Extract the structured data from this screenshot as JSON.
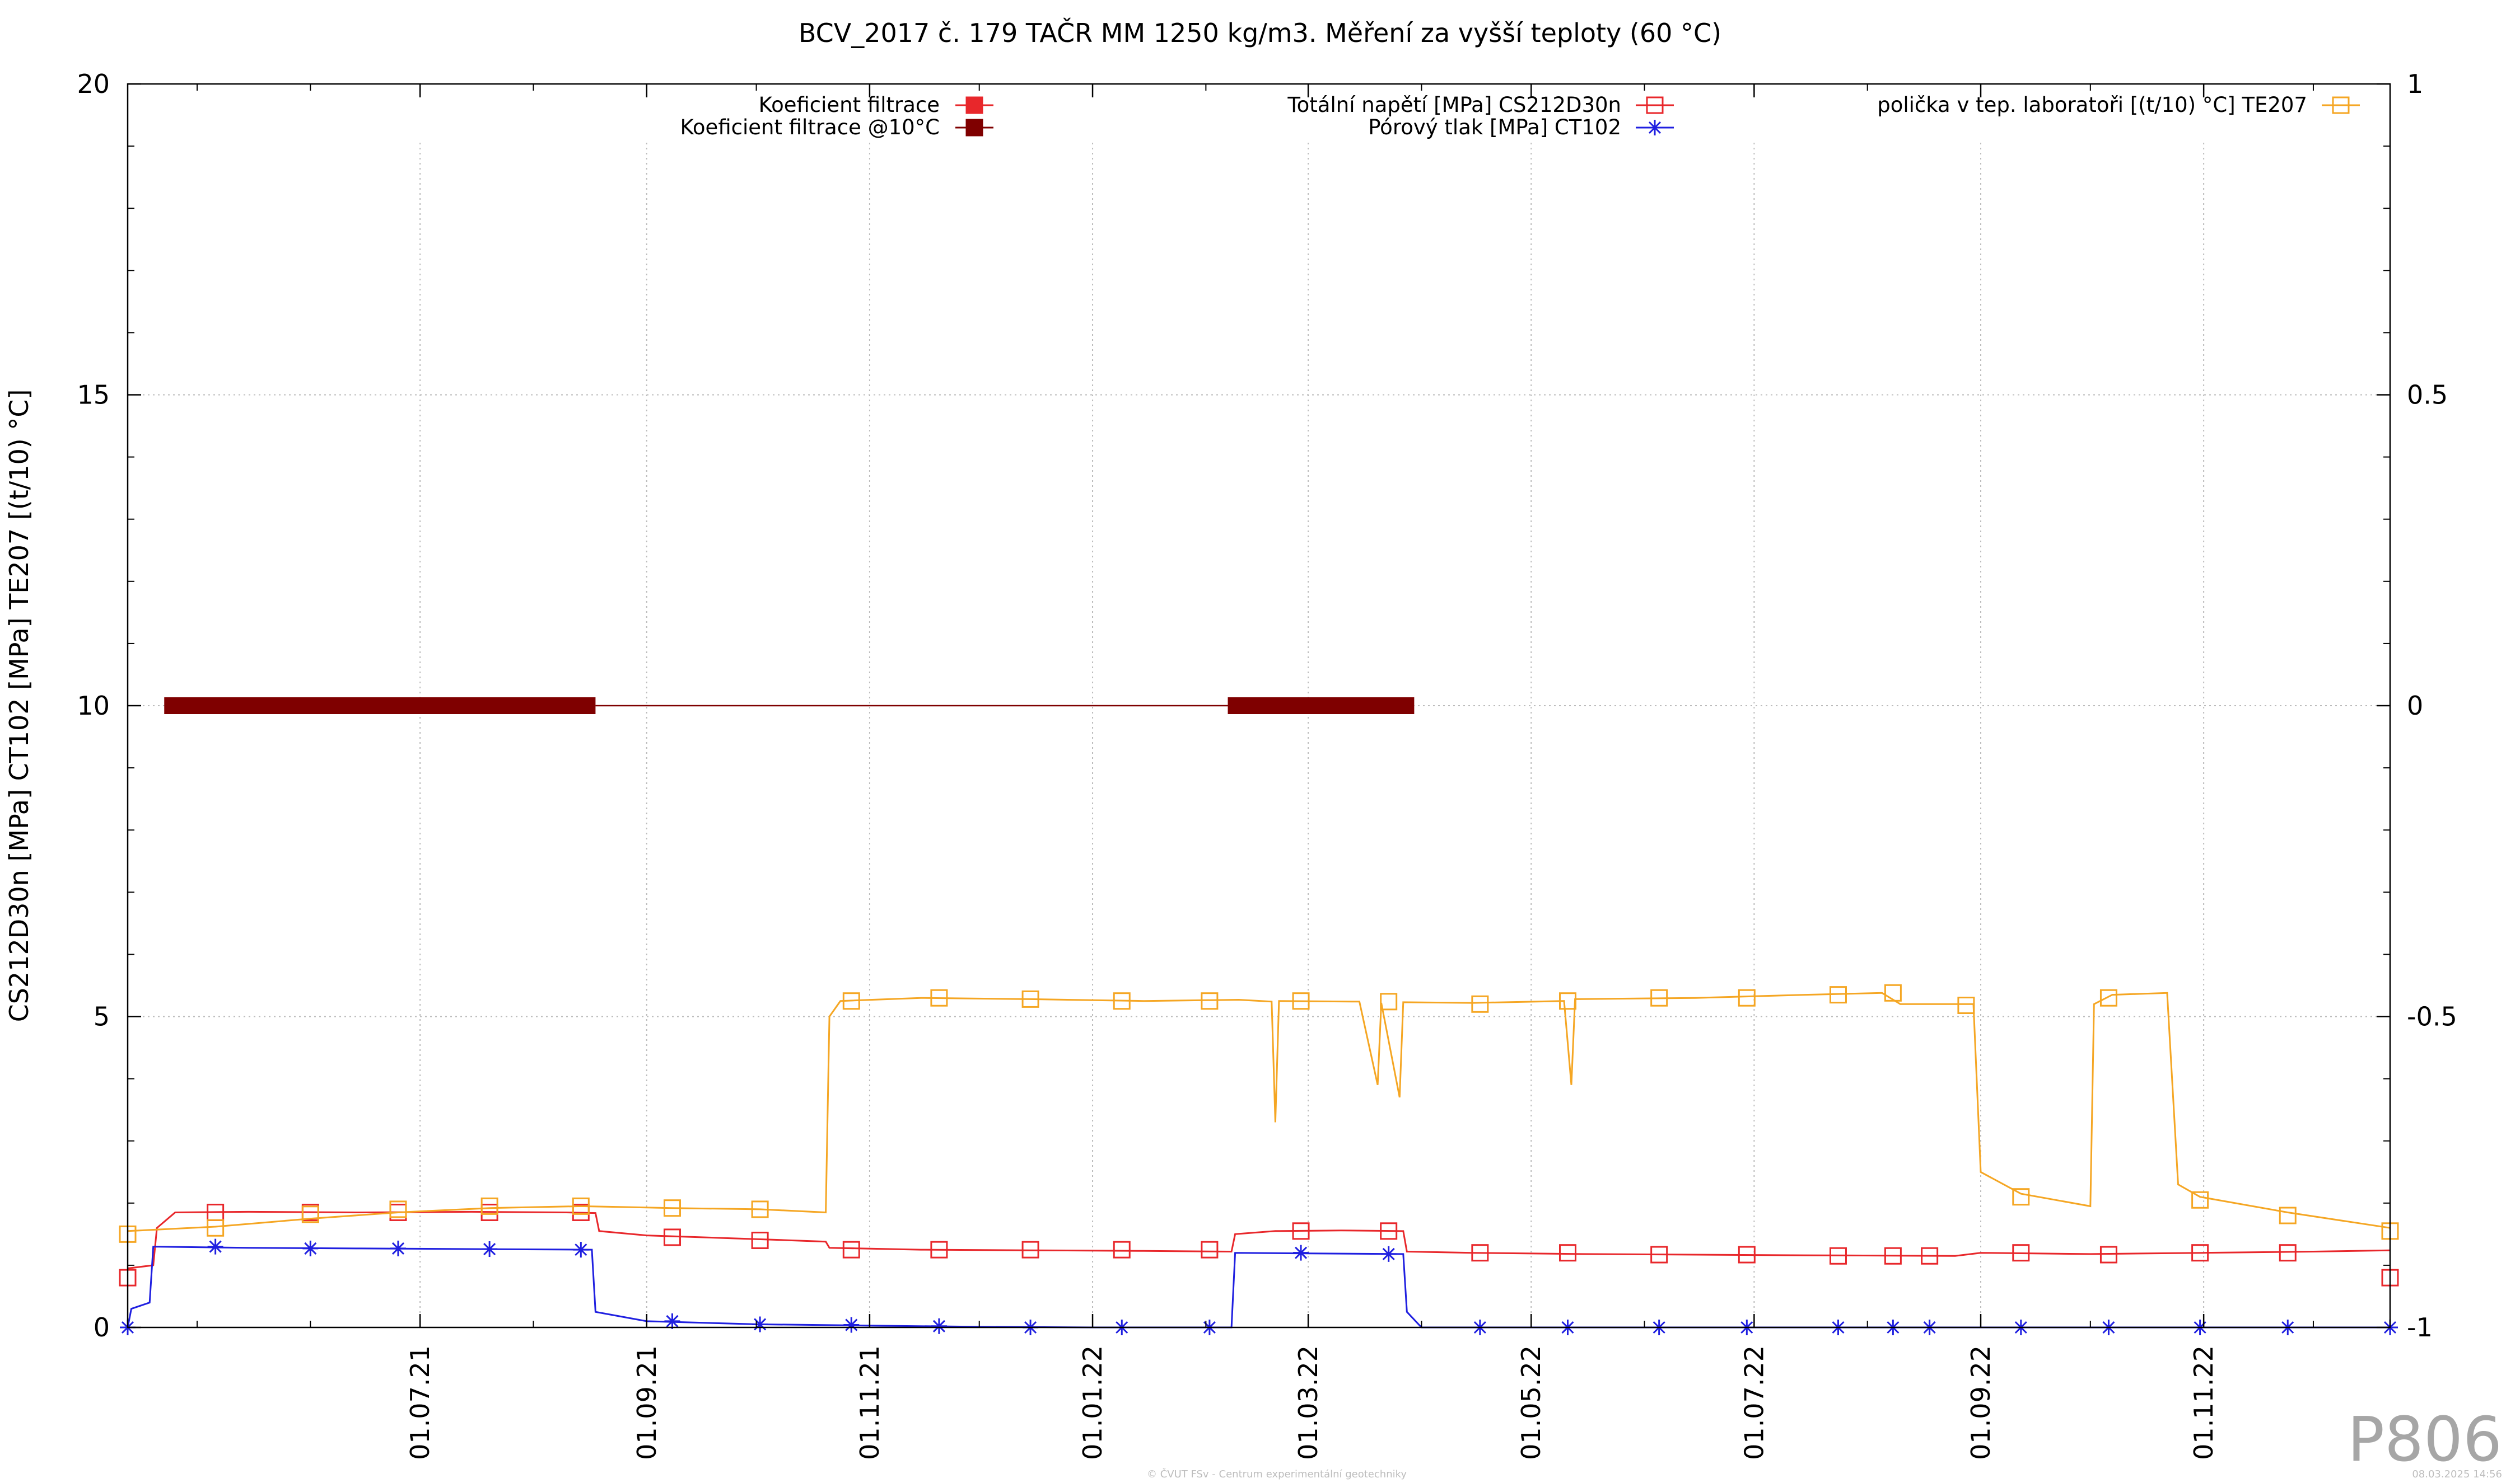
{
  "chart_data": {
    "type": "line",
    "title": "BCV_2017 č. 179 TAČR MM 1250 kg/m3. Měření za vyšší teploty (60 °C)",
    "ylabel": "CS212D30n [MPa] CT102 [MPa] TE207 [(t/10) °C]",
    "xlabel": "",
    "x_range": [
      "2021-04-12",
      "2022-12-22"
    ],
    "ylim": [
      0,
      20
    ],
    "y2lim": [
      -1,
      1
    ],
    "y_ticks": [
      "0",
      "5",
      "10",
      "15",
      "20"
    ],
    "y2_ticks": [
      "-1",
      "-0.5",
      "0",
      "0.5",
      "1"
    ],
    "x_ticks": [
      {
        "date": "2021-07-01",
        "label": "01.07.21"
      },
      {
        "date": "2021-09-01",
        "label": "01.09.21"
      },
      {
        "date": "2021-11-01",
        "label": "01.11.21"
      },
      {
        "date": "2022-01-01",
        "label": "01.01.22"
      },
      {
        "date": "2022-03-01",
        "label": "01.03.22"
      },
      {
        "date": "2022-05-01",
        "label": "01.05.22"
      },
      {
        "date": "2022-07-01",
        "label": "01.07.22"
      },
      {
        "date": "2022-09-01",
        "label": "01.09.22"
      },
      {
        "date": "2022-11-01",
        "label": "01.11.22"
      }
    ],
    "grid": true,
    "legend": [
      {
        "label": "Koeficient filtrace",
        "color": "#e8272b",
        "marker": "filled-square"
      },
      {
        "label": "Koeficient filtrace @10°C",
        "color": "#7f0000",
        "marker": "filled-square"
      },
      {
        "label": "Totální napětí [MPa] CS212D30n",
        "color": "#e8272b",
        "marker": "open-square"
      },
      {
        "label": "Pórový tlak [MPa] CT102",
        "color": "#1f1fe0",
        "marker": "star"
      },
      {
        "label": "polička v tep. laboratoři [(t/10) °C] TE207",
        "color": "#f5a623",
        "marker": "open-square"
      }
    ],
    "series": [
      {
        "name": "Totální napětí [MPa] CS212D30n",
        "color": "#e8272b",
        "axis": "y",
        "points": [
          [
            "2021-04-12",
            0.95
          ],
          [
            "2021-04-19",
            1.0
          ],
          [
            "2021-04-20",
            1.6
          ],
          [
            "2021-04-25",
            1.85
          ],
          [
            "2021-05-15",
            1.86
          ],
          [
            "2021-06-15",
            1.85
          ],
          [
            "2021-07-15",
            1.86
          ],
          [
            "2021-08-10",
            1.85
          ],
          [
            "2021-08-18",
            1.84
          ],
          [
            "2021-08-19",
            1.55
          ],
          [
            "2021-09-01",
            1.48
          ],
          [
            "2021-10-01",
            1.42
          ],
          [
            "2021-10-20",
            1.38
          ],
          [
            "2021-10-21",
            1.28
          ],
          [
            "2021-11-15",
            1.25
          ],
          [
            "2021-12-15",
            1.24
          ],
          [
            "2022-01-15",
            1.23
          ],
          [
            "2022-02-08",
            1.22
          ],
          [
            "2022-02-09",
            1.5
          ],
          [
            "2022-02-20",
            1.55
          ],
          [
            "2022-03-10",
            1.56
          ],
          [
            "2022-03-27",
            1.55
          ],
          [
            "2022-03-28",
            1.22
          ],
          [
            "2022-04-15",
            1.2
          ],
          [
            "2022-05-15",
            1.18
          ],
          [
            "2022-06-15",
            1.17
          ],
          [
            "2022-07-15",
            1.16
          ],
          [
            "2022-08-25",
            1.15
          ],
          [
            "2022-09-01",
            1.2
          ],
          [
            "2022-10-01",
            1.18
          ],
          [
            "2022-11-01",
            1.2
          ],
          [
            "2022-12-01",
            1.22
          ],
          [
            "2022-12-22",
            1.24
          ]
        ],
        "markers": [
          [
            "2021-04-12",
            0.8
          ],
          [
            "2021-05-06",
            1.85
          ],
          [
            "2021-06-01",
            1.85
          ],
          [
            "2021-06-25",
            1.85
          ],
          [
            "2021-07-20",
            1.85
          ],
          [
            "2021-08-14",
            1.85
          ],
          [
            "2021-09-08",
            1.45
          ],
          [
            "2021-10-02",
            1.4
          ],
          [
            "2021-10-27",
            1.25
          ],
          [
            "2021-11-20",
            1.25
          ],
          [
            "2021-12-15",
            1.25
          ],
          [
            "2022-01-09",
            1.25
          ],
          [
            "2022-02-02",
            1.25
          ],
          [
            "2022-02-27",
            1.55
          ],
          [
            "2022-03-23",
            1.55
          ],
          [
            "2022-04-17",
            1.2
          ],
          [
            "2022-05-11",
            1.2
          ],
          [
            "2022-06-05",
            1.17
          ],
          [
            "2022-06-29",
            1.17
          ],
          [
            "2022-07-24",
            1.15
          ],
          [
            "2022-08-08",
            1.15
          ],
          [
            "2022-08-18",
            1.15
          ],
          [
            "2022-09-12",
            1.2
          ],
          [
            "2022-10-06",
            1.17
          ],
          [
            "2022-10-31",
            1.2
          ],
          [
            "2022-11-24",
            1.2
          ],
          [
            "2022-12-22",
            0.8
          ]
        ]
      },
      {
        "name": "Pórový tlak [MPa] CT102",
        "color": "#1f1fe0",
        "axis": "y",
        "points": [
          [
            "2021-04-12",
            0.0
          ],
          [
            "2021-04-13",
            0.3
          ],
          [
            "2021-04-18",
            0.4
          ],
          [
            "2021-04-19",
            1.3
          ],
          [
            "2021-05-15",
            1.28
          ],
          [
            "2021-06-15",
            1.27
          ],
          [
            "2021-07-15",
            1.26
          ],
          [
            "2021-08-17",
            1.25
          ],
          [
            "2021-08-18",
            0.25
          ],
          [
            "2021-09-01",
            0.1
          ],
          [
            "2021-10-01",
            0.05
          ],
          [
            "2021-11-01",
            0.03
          ],
          [
            "2021-12-01",
            0.01
          ],
          [
            "2022-01-01",
            0.0
          ],
          [
            "2022-02-08",
            0.0
          ],
          [
            "2022-02-09",
            1.2
          ],
          [
            "2022-03-01",
            1.19
          ],
          [
            "2022-03-27",
            1.18
          ],
          [
            "2022-03-28",
            0.25
          ],
          [
            "2022-04-01",
            0.0
          ],
          [
            "2022-06-01",
            0.0
          ],
          [
            "2022-09-01",
            0.0
          ],
          [
            "2022-12-22",
            0.0
          ]
        ],
        "markers": [
          [
            "2021-04-12",
            0.0
          ],
          [
            "2021-05-06",
            1.3
          ],
          [
            "2021-06-01",
            1.27
          ],
          [
            "2021-06-25",
            1.27
          ],
          [
            "2021-07-20",
            1.26
          ],
          [
            "2021-08-14",
            1.25
          ],
          [
            "2021-09-08",
            0.1
          ],
          [
            "2021-10-02",
            0.05
          ],
          [
            "2021-10-27",
            0.04
          ],
          [
            "2021-11-20",
            0.02
          ],
          [
            "2021-12-15",
            0.0
          ],
          [
            "2022-01-09",
            0.0
          ],
          [
            "2022-02-02",
            0.0
          ],
          [
            "2022-02-27",
            1.2
          ],
          [
            "2022-03-23",
            1.18
          ],
          [
            "2022-04-17",
            0.0
          ],
          [
            "2022-05-11",
            0.0
          ],
          [
            "2022-06-05",
            0.0
          ],
          [
            "2022-06-29",
            0.0
          ],
          [
            "2022-07-24",
            0.0
          ],
          [
            "2022-08-08",
            0.0
          ],
          [
            "2022-08-18",
            0.0
          ],
          [
            "2022-09-12",
            0.0
          ],
          [
            "2022-10-06",
            0.0
          ],
          [
            "2022-10-31",
            0.0
          ],
          [
            "2022-11-24",
            0.0
          ],
          [
            "2022-12-22",
            0.0
          ]
        ]
      },
      {
        "name": "polička v tep. laboratoři [(t/10) °C] TE207",
        "color": "#f5a623",
        "axis": "y",
        "points": [
          [
            "2021-04-12",
            1.55
          ],
          [
            "2021-05-06",
            1.62
          ],
          [
            "2021-06-01",
            1.75
          ],
          [
            "2021-06-25",
            1.85
          ],
          [
            "2021-07-20",
            1.92
          ],
          [
            "2021-08-14",
            1.95
          ],
          [
            "2021-09-08",
            1.92
          ],
          [
            "2021-10-02",
            1.9
          ],
          [
            "2021-10-20",
            1.85
          ],
          [
            "2021-10-21",
            5.0
          ],
          [
            "2021-10-24",
            5.25
          ],
          [
            "2021-11-15",
            5.3
          ],
          [
            "2021-12-15",
            5.28
          ],
          [
            "2022-01-15",
            5.25
          ],
          [
            "2022-02-10",
            5.27
          ],
          [
            "2022-02-19",
            5.24
          ],
          [
            "2022-02-20",
            3.3
          ],
          [
            "2022-02-21",
            5.25
          ],
          [
            "2022-03-15",
            5.24
          ],
          [
            "2022-03-20",
            3.9
          ],
          [
            "2022-03-21",
            5.22
          ],
          [
            "2022-03-26",
            3.7
          ],
          [
            "2022-03-27",
            5.23
          ],
          [
            "2022-04-15",
            5.22
          ],
          [
            "2022-05-10",
            5.25
          ],
          [
            "2022-05-12",
            3.9
          ],
          [
            "2022-05-13",
            5.28
          ],
          [
            "2022-06-15",
            5.3
          ],
          [
            "2022-07-15",
            5.35
          ],
          [
            "2022-08-05",
            5.38
          ],
          [
            "2022-08-10",
            5.2
          ],
          [
            "2022-08-30",
            5.2
          ],
          [
            "2022-09-01",
            2.5
          ],
          [
            "2022-09-12",
            2.15
          ],
          [
            "2022-10-01",
            1.95
          ],
          [
            "2022-10-02",
            5.2
          ],
          [
            "2022-10-07",
            5.35
          ],
          [
            "2022-10-22",
            5.38
          ],
          [
            "2022-10-25",
            2.3
          ],
          [
            "2022-10-31",
            2.1
          ],
          [
            "2022-11-24",
            1.85
          ],
          [
            "2022-12-22",
            1.6
          ]
        ],
        "markers": [
          [
            "2021-04-12",
            1.5
          ],
          [
            "2021-05-06",
            1.6
          ],
          [
            "2021-06-01",
            1.82
          ],
          [
            "2021-06-25",
            1.9
          ],
          [
            "2021-07-20",
            1.95
          ],
          [
            "2021-08-14",
            1.95
          ],
          [
            "2021-09-08",
            1.92
          ],
          [
            "2021-10-02",
            1.9
          ],
          [
            "2021-10-27",
            5.25
          ],
          [
            "2021-11-20",
            5.3
          ],
          [
            "2021-12-15",
            5.28
          ],
          [
            "2022-01-09",
            5.25
          ],
          [
            "2022-02-02",
            5.25
          ],
          [
            "2022-02-27",
            5.25
          ],
          [
            "2022-03-23",
            5.24
          ],
          [
            "2022-04-17",
            5.2
          ],
          [
            "2022-05-11",
            5.25
          ],
          [
            "2022-06-05",
            5.3
          ],
          [
            "2022-06-29",
            5.3
          ],
          [
            "2022-07-24",
            5.35
          ],
          [
            "2022-08-08",
            5.38
          ],
          [
            "2022-08-28",
            5.18
          ],
          [
            "2022-09-12",
            2.1
          ],
          [
            "2022-10-06",
            5.3
          ],
          [
            "2022-10-31",
            2.05
          ],
          [
            "2022-11-24",
            1.8
          ],
          [
            "2022-12-22",
            1.55
          ]
        ]
      },
      {
        "name": "Koeficient filtrace @10°C",
        "color": "#7f0000",
        "axis": "y2",
        "segments": [
          {
            "from": "2021-04-22",
            "to": "2021-08-18",
            "value": 0,
            "style": "thick"
          },
          {
            "from": "2021-08-18",
            "to": "2022-02-07",
            "value": 0,
            "style": "thin"
          },
          {
            "from": "2022-02-07",
            "to": "2022-03-30",
            "value": 0,
            "style": "thick"
          }
        ]
      }
    ]
  },
  "watermark": "P806",
  "footer_center": "© ČVUT FSv - Centrum experimentální geotechniky",
  "footer_right": "08.03.2025 14:56"
}
